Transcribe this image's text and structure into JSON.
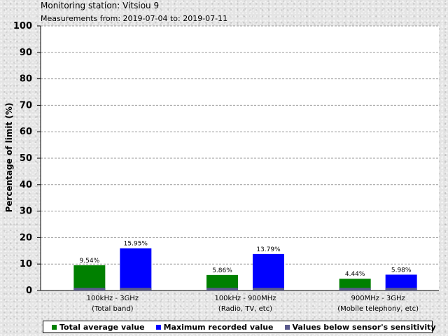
{
  "header": {
    "title": "Monitoring station: Vitsiou 9",
    "subtitle": "Measurements from: 2019-07-04 to: 2019-07-11"
  },
  "colors": {
    "average": "#008000",
    "maximum": "#0000ff",
    "below_sensitivity": "#5a5a8c",
    "plot_background": "#ffffff",
    "grid": "#999999"
  },
  "chart_data": {
    "type": "bar",
    "ylabel": "Percentage of limit (%)",
    "ylim": [
      0,
      100
    ],
    "yticks": [
      0,
      10,
      20,
      30,
      40,
      50,
      60,
      70,
      80,
      90,
      100
    ],
    "grid": true,
    "legend_position": "bottom",
    "categories": [
      {
        "line1": "100kHz - 3GHz",
        "line2": "(Total band)"
      },
      {
        "line1": "100kHz - 900MHz",
        "line2": "(Radio, TV, etc)"
      },
      {
        "line1": "900MHz - 3GHz",
        "line2": "(Mobile telephony, etc)"
      }
    ],
    "series": [
      {
        "name": "Total average value",
        "values": [
          9.54,
          5.86,
          4.44
        ],
        "labels": [
          "9.54%",
          "5.86%",
          "4.44%"
        ]
      },
      {
        "name": "Maximum recorded value",
        "values": [
          15.95,
          13.79,
          5.98
        ],
        "labels": [
          "15.95%",
          "13.79%",
          "5.98%"
        ]
      }
    ],
    "sensitivity_level": 1.0,
    "legend": [
      "Total average value",
      "Maximum recorded value",
      "Values below sensor's sensitivity"
    ]
  }
}
